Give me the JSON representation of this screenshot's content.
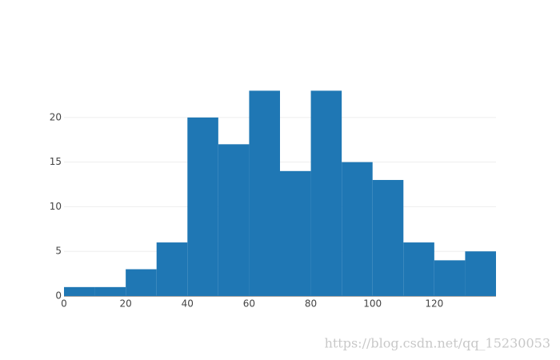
{
  "chart_data": {
    "type": "histogram",
    "bins": [
      0,
      10,
      20,
      30,
      40,
      50,
      60,
      70,
      80,
      90,
      100,
      110,
      120,
      130,
      140
    ],
    "counts": [
      1,
      1,
      3,
      6,
      20,
      17,
      23,
      14,
      23,
      15,
      13,
      6,
      4,
      5
    ],
    "color": "#1f77b4",
    "xlim": [
      0,
      140
    ],
    "xticks": [
      0,
      20,
      40,
      60,
      80,
      100,
      120
    ],
    "ylim": [
      0,
      24.2
    ],
    "yticks": [
      0,
      5,
      10,
      15,
      20
    ],
    "grid": true,
    "watermark": "https://blog.csdn.net/qq_15230053"
  }
}
